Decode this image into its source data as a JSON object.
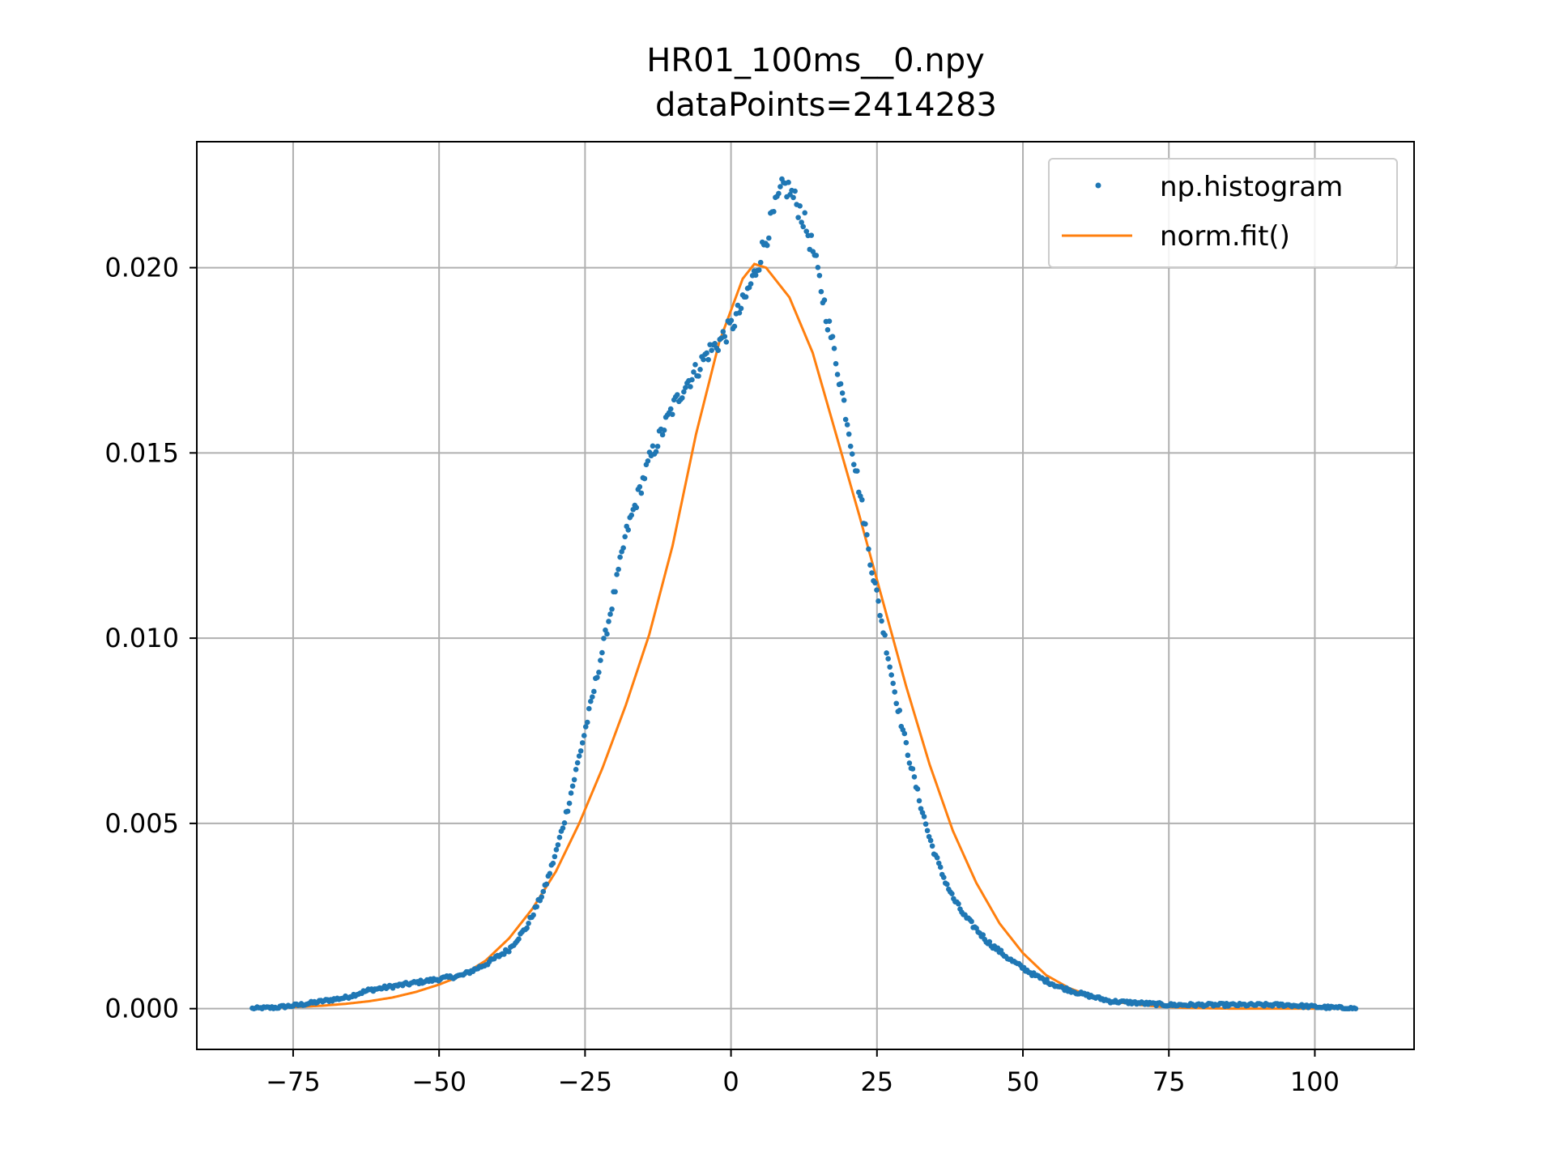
{
  "chart_data": {
    "type": "scatter",
    "title": "HR01_100ms__0.npy",
    "subtitle": "dataPoints=2414283",
    "xlabel": "",
    "ylabel": "",
    "xlim": [
      -91.5,
      117
    ],
    "ylim": [
      -0.0011,
      0.0234
    ],
    "xticks": [
      -75,
      -50,
      -25,
      0,
      25,
      50,
      75,
      100
    ],
    "xtick_labels": [
      "−75",
      "−50",
      "−25",
      "0",
      "25",
      "50",
      "75",
      "100"
    ],
    "yticks": [
      0.0,
      0.005,
      0.01,
      0.015,
      0.02
    ],
    "ytick_labels": [
      "0.000",
      "0.005",
      "0.010",
      "0.015",
      "0.020"
    ],
    "grid": true,
    "legend_position": "top-right",
    "series": [
      {
        "name": "np.histogram",
        "kind": "points",
        "color": "#1f77b4",
        "x": [
          -82,
          -78,
          -74,
          -70,
          -66,
          -62,
          -58,
          -54,
          -50,
          -46,
          -42,
          -38,
          -35,
          -32,
          -30,
          -28,
          -26,
          -24,
          -22,
          -20,
          -18,
          -16,
          -14,
          -12,
          -10,
          -8,
          -6,
          -4,
          -2,
          0,
          2,
          4,
          6,
          8,
          9,
          10,
          12,
          14,
          16,
          18,
          20,
          22,
          24,
          26,
          28,
          30,
          32,
          34,
          36,
          38,
          40,
          44,
          48,
          52,
          56,
          60,
          65,
          70,
          75,
          80,
          85,
          90,
          95,
          100,
          107
        ],
        "y": [
          0.0,
          3e-05,
          0.0001,
          0.0002,
          0.0003,
          0.0005,
          0.0006,
          0.0007,
          0.0008,
          0.0009,
          0.0012,
          0.0016,
          0.0022,
          0.0032,
          0.0042,
          0.0054,
          0.0068,
          0.0082,
          0.0097,
          0.0112,
          0.0128,
          0.0138,
          0.0148,
          0.0155,
          0.0162,
          0.0168,
          0.0172,
          0.0177,
          0.018,
          0.0184,
          0.019,
          0.0198,
          0.0208,
          0.0218,
          0.0222,
          0.0221,
          0.0215,
          0.0205,
          0.019,
          0.0175,
          0.0158,
          0.014,
          0.012,
          0.0103,
          0.0086,
          0.0071,
          0.0058,
          0.0046,
          0.0037,
          0.003,
          0.0025,
          0.0018,
          0.0013,
          0.0009,
          0.0006,
          0.0004,
          0.0002,
          0.00015,
          0.0001,
          0.0001,
          0.0001,
          0.0001,
          0.0001,
          5e-05,
          0.0
        ]
      },
      {
        "name": "norm.fit()",
        "kind": "line",
        "color": "#ff7f0e",
        "x": [
          -82,
          -78,
          -74,
          -70,
          -66,
          -62,
          -58,
          -54,
          -50,
          -46,
          -42,
          -38,
          -34,
          -30,
          -26,
          -22,
          -18,
          -14,
          -10,
          -6,
          -2,
          2,
          4,
          6,
          10,
          14,
          18,
          22,
          26,
          30,
          34,
          38,
          42,
          46,
          50,
          54,
          58,
          62,
          66,
          70,
          74,
          78,
          82,
          86,
          90,
          94,
          98,
          102,
          107
        ],
        "y": [
          1e-05,
          3e-05,
          5e-05,
          8e-05,
          0.00013,
          0.0002,
          0.0003,
          0.00045,
          0.00065,
          0.0009,
          0.0013,
          0.0019,
          0.0027,
          0.0037,
          0.005,
          0.0065,
          0.0082,
          0.0101,
          0.0125,
          0.0155,
          0.018,
          0.0197,
          0.0201,
          0.02,
          0.0192,
          0.0177,
          0.0155,
          0.0133,
          0.011,
          0.0087,
          0.0066,
          0.0048,
          0.0034,
          0.0023,
          0.0015,
          0.0009,
          0.00055,
          0.00032,
          0.00018,
          0.0001,
          5e-05,
          2e-05,
          1e-05,
          0.0,
          0.0,
          0.0,
          0.0,
          0.0,
          0.0
        ]
      }
    ]
  }
}
